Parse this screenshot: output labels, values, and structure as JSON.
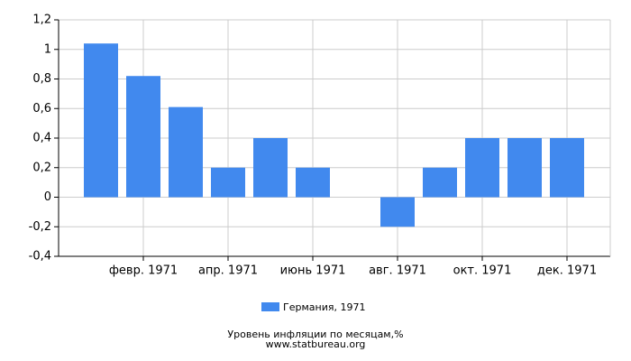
{
  "chart_data": {
    "type": "bar",
    "categories": [
      null,
      "февр. 1971",
      null,
      "апр. 1971",
      null,
      "июнь 1971",
      null,
      "авг. 1971",
      null,
      "окт. 1971",
      null,
      "дек. 1971"
    ],
    "series": [
      {
        "name": "Германия, 1971",
        "color": "#4189ee",
        "values": [
          1.04,
          0.82,
          0.61,
          0.2,
          0.4,
          0.2,
          0,
          -0.2,
          0.2,
          0.4,
          0.4,
          0.4
        ]
      }
    ],
    "ylim": [
      -0.4,
      1.2
    ],
    "yticks": [
      {
        "value": -0.4,
        "label": "-0,4"
      },
      {
        "value": -0.2,
        "label": "-0,2"
      },
      0,
      {
        "value": 0.2,
        "label": "0,2"
      },
      {
        "value": 0.4,
        "label": "0,4"
      },
      {
        "value": 0.6,
        "label": "0,6"
      },
      {
        "value": 0.8,
        "label": "0,8"
      },
      1,
      {
        "value": 1.2,
        "label": "1,2"
      }
    ],
    "grid": true,
    "caption": "Уровень инфляции по месяцам,%",
    "source": "www.statbureau.org"
  }
}
